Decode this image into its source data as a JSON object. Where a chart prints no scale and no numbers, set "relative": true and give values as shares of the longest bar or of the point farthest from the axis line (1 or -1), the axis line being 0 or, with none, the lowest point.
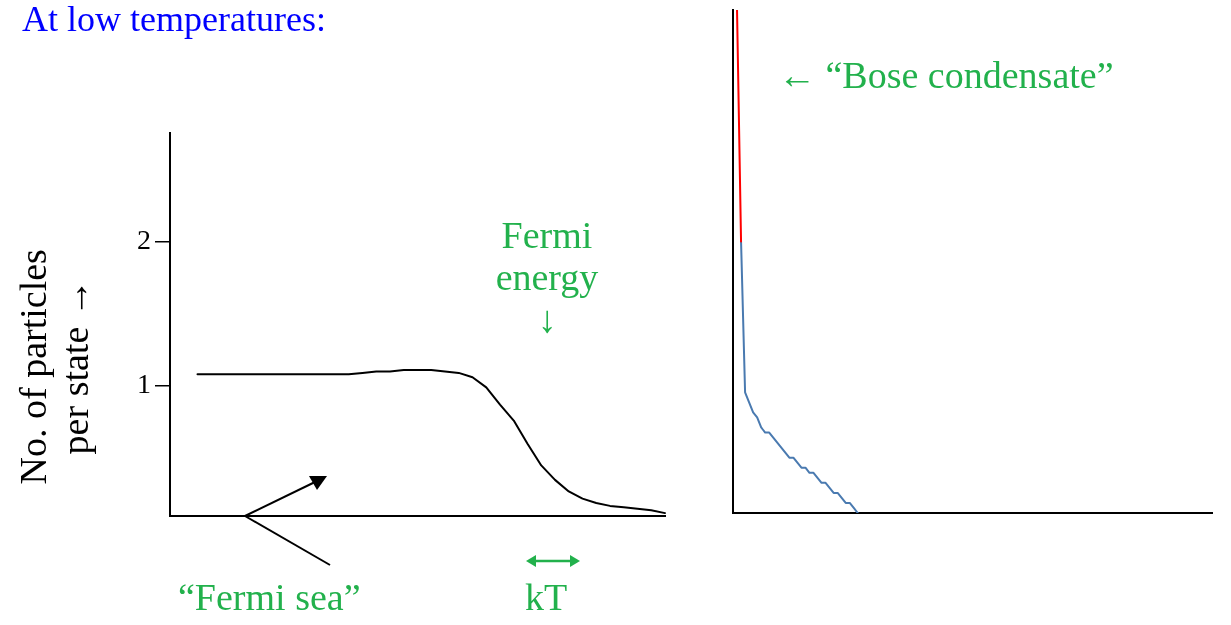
{
  "chart_data": [
    {
      "type": "line",
      "title": "At low temperatures:",
      "ylabel": "No. of particles per state →",
      "annotations": [
        "Fermi energy ↓",
        "“Fermi sea”",
        "kT"
      ],
      "categories": [
        null,
        null,
        null,
        null,
        null,
        null,
        null,
        null,
        null,
        null,
        null,
        null,
        null,
        null,
        null,
        null,
        null,
        null,
        null,
        null,
        null,
        null,
        null,
        null,
        null,
        null,
        null,
        null,
        null,
        null,
        null,
        null,
        null,
        null,
        null,
        null,
        null
      ],
      "series": [
        {
          "color": "#000000",
          "values": [
            null,
            null,
            1.08,
            1.08,
            1.08,
            1.08,
            1.08,
            1.08,
            1.08,
            1.08,
            1.08,
            1.08,
            1.08,
            1.08,
            1.09,
            1.1,
            1.1,
            1.11,
            1.11,
            1.11,
            1.1,
            1.09,
            1.06,
            0.99,
            0.87,
            0.76,
            0.6,
            0.45,
            0.35,
            0.27,
            0.22,
            0.19,
            0.17,
            0.16,
            0.15,
            0.14,
            0.12
          ]
        }
      ],
      "ylim": [
        0.1,
        2.75
      ],
      "yticks": [
        1,
        2
      ],
      "tick_labels": "y"
    },
    {
      "type": "line",
      "relative": true,
      "annotations": [
        "← “Bose condensate”"
      ],
      "categories": [
        null,
        null,
        null,
        null,
        null,
        null,
        null,
        null,
        null,
        null,
        null,
        null,
        null,
        null,
        null,
        null,
        null,
        null,
        null,
        null,
        null,
        null,
        null,
        null,
        null,
        null,
        null,
        null,
        null,
        null,
        null,
        null,
        null,
        null,
        null,
        null,
        null,
        null,
        null,
        null,
        null,
        null,
        null,
        null,
        null,
        null,
        null,
        null,
        null,
        null,
        null,
        null,
        null,
        null,
        null,
        null,
        null,
        null,
        null,
        null,
        null,
        null,
        null,
        null,
        null,
        null,
        null,
        null,
        null,
        null,
        null,
        null,
        null,
        null,
        null,
        null,
        null,
        null,
        null,
        null,
        null,
        null,
        null,
        null,
        null,
        null,
        null,
        null,
        null,
        null,
        null,
        null,
        null,
        null,
        null,
        null,
        null,
        null,
        null,
        null,
        null,
        null,
        null,
        null,
        null,
        null,
        null,
        null,
        null,
        null,
        null,
        null,
        null,
        null,
        null,
        null,
        null,
        null,
        null,
        null
      ],
      "series": [
        {
          "color": "#ff0000",
          "values": [
            null,
            1,
            0.54,
            null,
            null,
            null,
            null,
            null,
            null,
            null,
            null,
            null,
            null,
            null,
            null,
            null,
            null,
            null,
            null,
            null,
            null,
            null,
            null,
            null,
            null,
            null,
            null,
            null,
            null,
            null,
            null,
            null,
            null,
            null,
            null,
            null,
            null,
            null,
            null,
            null,
            null,
            null,
            null,
            null,
            null,
            null,
            null,
            null,
            null,
            null,
            null,
            null,
            null,
            null,
            null,
            null,
            null,
            null,
            null,
            null,
            null,
            null,
            null,
            null,
            null,
            null,
            null,
            null,
            null,
            null,
            null,
            null,
            null,
            null,
            null,
            null,
            null,
            null,
            null,
            null,
            null,
            null,
            null,
            null,
            null,
            null,
            null,
            null,
            null,
            null,
            null,
            null,
            null,
            null,
            null,
            null,
            null,
            null,
            null,
            null,
            null,
            null,
            null,
            null,
            null,
            null,
            null,
            null,
            null,
            null,
            null,
            null,
            null,
            null,
            null,
            null,
            null,
            null,
            null,
            null
          ]
        },
        {
          "color": "#4a7ab0",
          "values": [
            null,
            null,
            0.54,
            0.24,
            0.22,
            0.2,
            0.19,
            0.17,
            0.16,
            0.16,
            0.15,
            0.14,
            0.13,
            0.12,
            0.11,
            0.11,
            0.1,
            0.09,
            0.09,
            0.08,
            0.08,
            0.07,
            0.06,
            0.06,
            0.05,
            0.04,
            0.04,
            0.03,
            0.02,
            0.02,
            0.01,
            0,
            null,
            null,
            null,
            null,
            null,
            null,
            null,
            null,
            null,
            null,
            null,
            null,
            null,
            null,
            null,
            null,
            null,
            null,
            null,
            null,
            null,
            null,
            null,
            null,
            null,
            null,
            null,
            null,
            null,
            null,
            null,
            null,
            null,
            null,
            null,
            null,
            null,
            null,
            null,
            null,
            null,
            null,
            null,
            null,
            null,
            null,
            null,
            null,
            null,
            null,
            null,
            null,
            null,
            null,
            null,
            null,
            null,
            null,
            null,
            null,
            null,
            null,
            null,
            null,
            null,
            null,
            null,
            null,
            null,
            null,
            null,
            null,
            null,
            null,
            null,
            null,
            null,
            null,
            null,
            null,
            null,
            null,
            null,
            null,
            null,
            null,
            null,
            null
          ]
        }
      ],
      "tick_labels": false
    }
  ]
}
